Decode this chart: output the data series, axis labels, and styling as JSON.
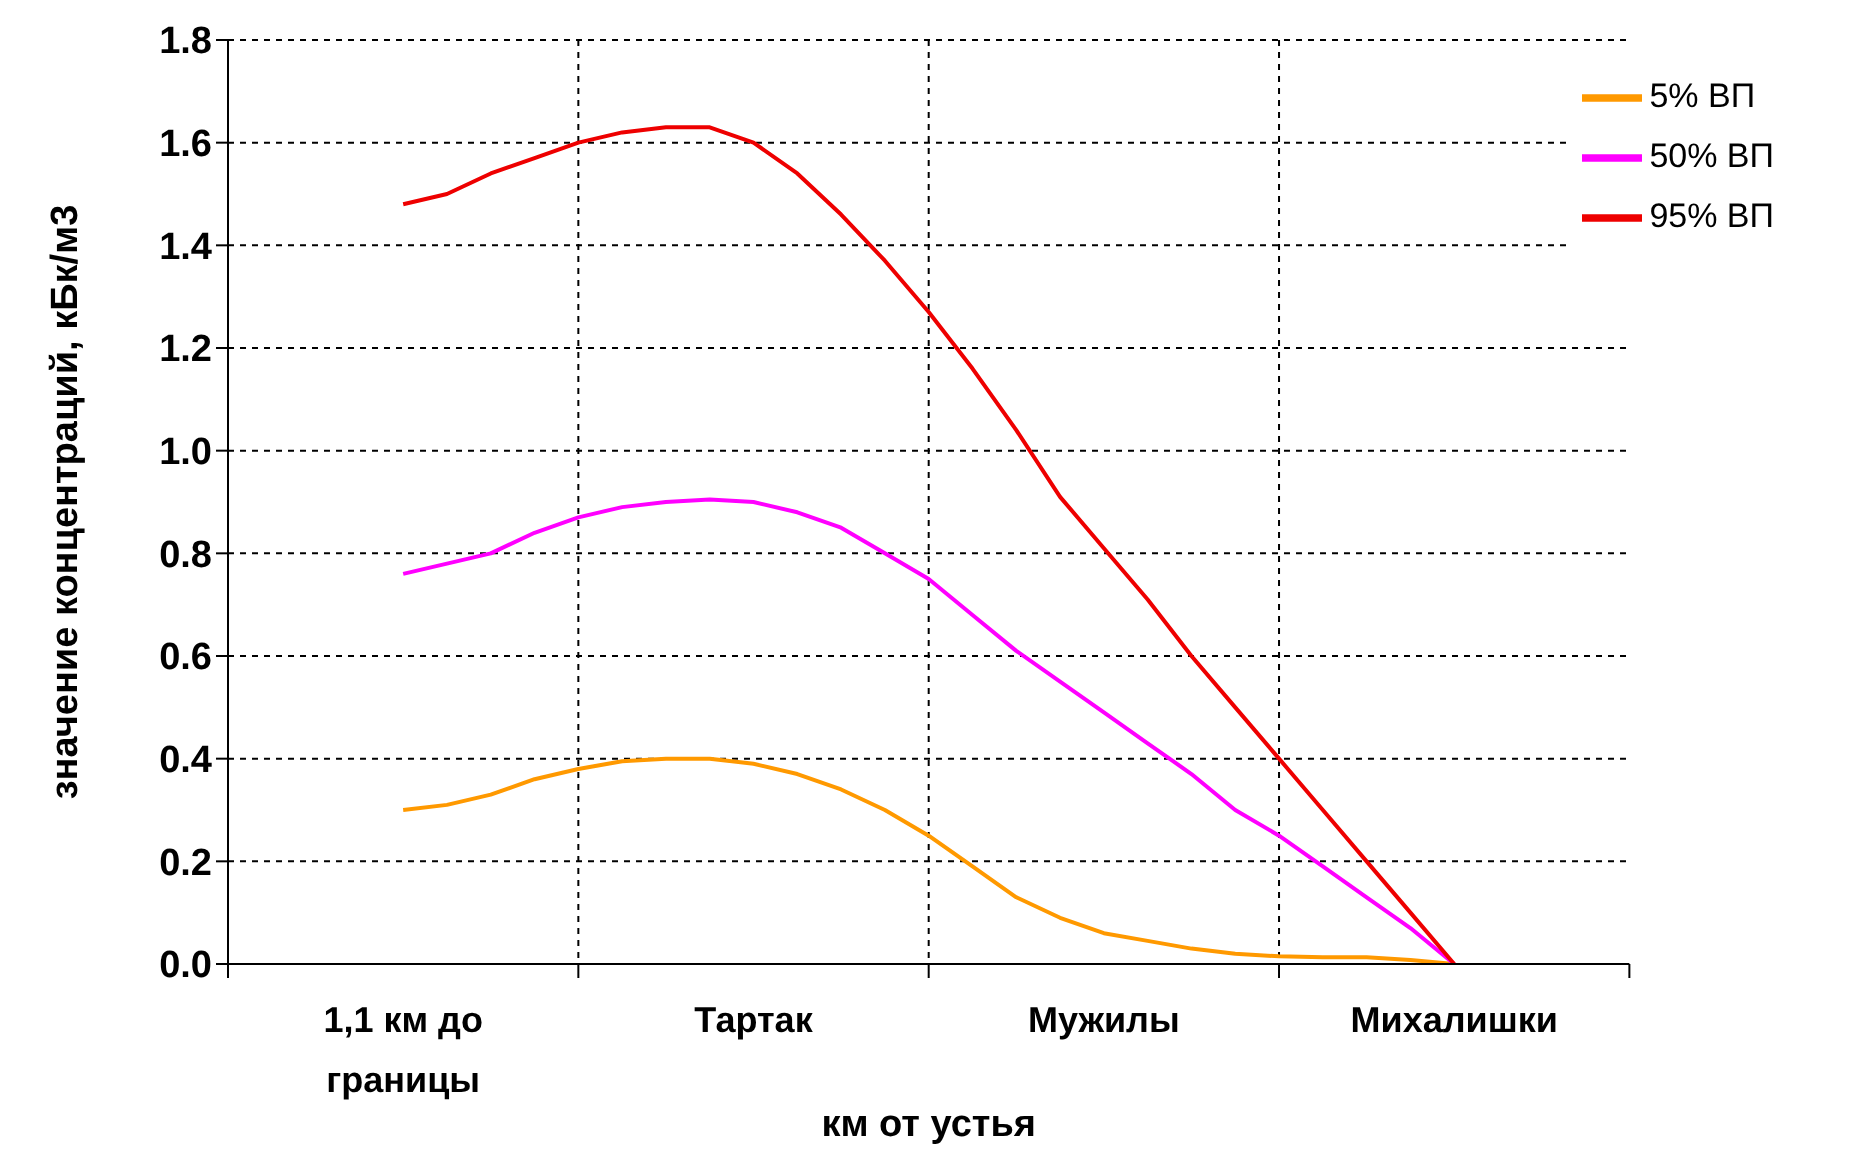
{
  "chart_data": {
    "type": "line",
    "xlabel": "км от устья",
    "ylabel": "значение концентраций, кБк/м3",
    "categories": [
      null,
      null,
      null,
      null,
      "1,1 км до границы",
      null,
      null,
      null,
      null,
      null,
      null,
      null,
      "Тартак",
      null,
      null,
      null,
      null,
      null,
      null,
      null,
      "Мужилы",
      null,
      null,
      null,
      null,
      null,
      null,
      null,
      "Михалишки",
      null,
      null,
      null,
      null
    ],
    "ylim": [
      0,
      1.8
    ],
    "yticks": [
      {
        "value": 0,
        "label": "0.0"
      },
      0.2,
      0.4,
      0.6,
      0.8,
      {
        "value": 1,
        "label": "1.0"
      },
      1.2,
      1.4,
      1.6,
      1.8
    ],
    "grid": true,
    "line_style": "solid",
    "marker": "none",
    "legend": "top right",
    "series": [
      {
        "name": "5% ВП",
        "color": "#ff9900",
        "values": [
          null,
          null,
          null,
          null,
          0.3,
          0.31,
          0.33,
          0.36,
          0.38,
          0.395,
          0.4,
          0.4,
          0.39,
          0.37,
          0.34,
          0.3,
          0.25,
          0.19,
          0.13,
          0.09,
          0.06,
          0.045,
          0.03,
          0.02,
          0.015,
          0.013,
          0.013,
          0.008,
          0.0,
          null,
          null,
          null,
          null
        ]
      },
      {
        "name": "50% ВП",
        "color": "#ff00ff",
        "values": [
          null,
          null,
          null,
          null,
          0.76,
          0.78,
          0.8,
          0.84,
          0.87,
          0.89,
          0.9,
          0.905,
          0.9,
          0.88,
          0.85,
          0.8,
          0.75,
          0.68,
          0.61,
          0.55,
          0.49,
          0.43,
          0.37,
          0.3,
          0.25,
          0.19,
          0.13,
          0.07,
          0.0,
          null,
          null,
          null,
          null
        ]
      },
      {
        "name": "95% ВП",
        "color": "#ee0000",
        "values": [
          null,
          null,
          null,
          null,
          1.48,
          1.5,
          1.54,
          1.57,
          1.6,
          1.62,
          1.63,
          1.63,
          1.6,
          1.54,
          1.46,
          1.37,
          1.27,
          1.16,
          1.04,
          0.91,
          0.81,
          0.71,
          0.6,
          0.5,
          0.4,
          0.3,
          0.2,
          0.1,
          0.0,
          null,
          null,
          null,
          null
        ]
      }
    ]
  }
}
